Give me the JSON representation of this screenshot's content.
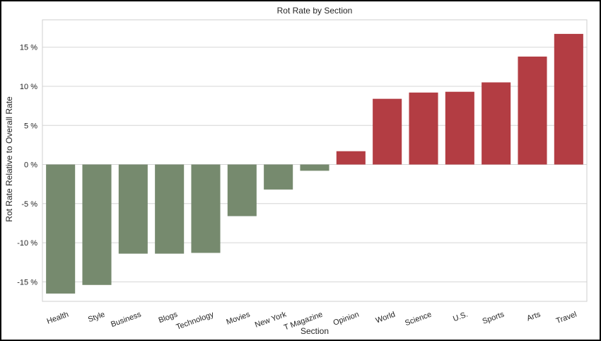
{
  "chart_data": {
    "type": "bar",
    "title": "Rot Rate by Section",
    "xlabel": "Section",
    "ylabel": "Rot Rate Relative to Overall Rate",
    "categories": [
      "Health",
      "Style",
      "Business",
      "Blogs",
      "Technology",
      "Movies",
      "New York",
      "T Magazine",
      "Opinion",
      "World",
      "Science",
      "U.S.",
      "Sports",
      "Arts",
      "Travel"
    ],
    "values": [
      -16.5,
      -15.4,
      -11.4,
      -11.4,
      -11.3,
      -6.6,
      -3.2,
      -0.8,
      1.7,
      8.4,
      9.2,
      9.3,
      10.5,
      13.8,
      16.7
    ],
    "ylim": [
      -17.5,
      18.5
    ],
    "yticks": [
      15,
      10,
      5,
      0,
      -5,
      -10,
      -15
    ],
    "ytick_labels": [
      "15 %",
      "10 %",
      "5 %",
      "0 %",
      "-5 %",
      "-10 %",
      "-15 %"
    ],
    "grid": true,
    "colors": {
      "negative": "#768a6e",
      "positive": "#b33d43"
    }
  }
}
